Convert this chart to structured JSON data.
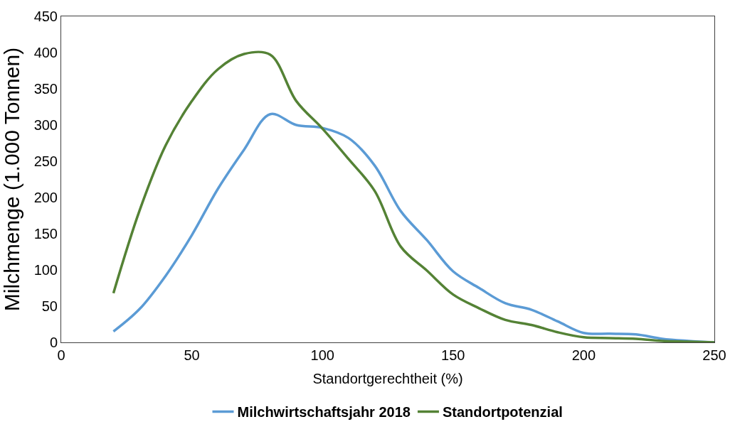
{
  "chart_data": {
    "type": "line",
    "xlabel": "Standortgerechtheit (%)",
    "ylabel": "Milchmenge (1.000 Tonnen)",
    "xlim": [
      0,
      250
    ],
    "xticks": [
      0,
      50,
      100,
      150,
      200,
      250
    ],
    "ylim": [
      0,
      450
    ],
    "yticks": [
      0,
      50,
      100,
      150,
      200,
      250,
      300,
      350,
      400,
      450
    ],
    "x": [
      20,
      30,
      40,
      50,
      60,
      70,
      80,
      90,
      100,
      110,
      120,
      130,
      140,
      150,
      160,
      170,
      180,
      190,
      200,
      210,
      220,
      230,
      240,
      250
    ],
    "series": [
      {
        "name": "Milchwirtschaftsjahr 2018",
        "color": "#5b9bd5",
        "values": [
          15,
          46,
          92,
          148,
          212,
          266,
          315,
          300,
          296,
          282,
          244,
          181,
          141,
          98,
          75,
          54,
          45,
          29,
          13,
          12,
          11,
          5,
          2,
          0
        ]
      },
      {
        "name": "Standortpotenzial",
        "color": "#548235",
        "values": [
          68,
          182,
          272,
          333,
          377,
          398,
          397,
          333,
          295,
          253,
          209,
          132,
          99,
          66,
          47,
          31,
          24,
          14,
          7,
          6,
          5,
          2,
          1,
          0
        ]
      }
    ],
    "legend": "bottom",
    "line_style": "solid",
    "marker": "none"
  }
}
